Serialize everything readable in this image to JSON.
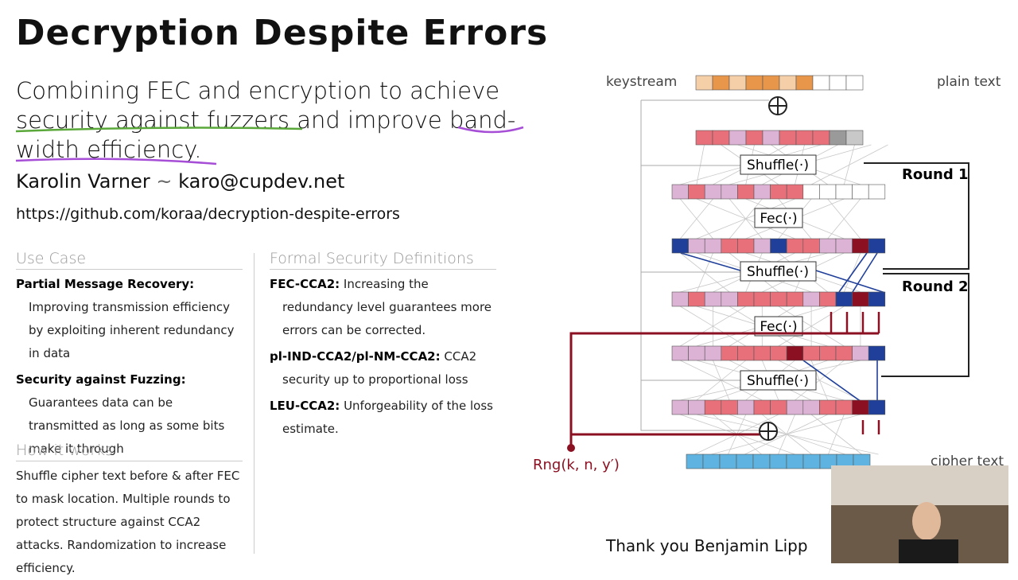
{
  "header": {
    "title": "Decryption Despite Errors",
    "subtitle_lines": [
      "Combining FEC and encryption to achieve",
      "security against fuzzers and improve band-",
      "width efficiency."
    ],
    "author": "Karolin Varner",
    "separator": "~",
    "email": "karo@cupdev.net",
    "url": "https://github.com/koraa/decryption-despite-errors"
  },
  "use_case": {
    "heading": "Use Case",
    "items": [
      {
        "term": "Partial Message Recovery:",
        "text": "Improving transmission efficiency by exploiting inherent redundancy in data"
      },
      {
        "term": "Security against Fuzzing:",
        "text": "Guarantees data can be transmitted as long as some bits make it through"
      }
    ]
  },
  "how_it_works": {
    "heading": "How it works",
    "text": "Shuffle cipher text before & after FEC to mask location. Multiple rounds to protect structure against CCA2 attacks. Randomization to increase efficiency."
  },
  "formal": {
    "heading": "Formal Security Definitions",
    "items": [
      {
        "term": "FEC-CCA2:",
        "text": "Increasing the redundancy level guarantees more errors can be corrected."
      },
      {
        "term": "pl-IND-CCA2/pl-NM-CCA2:",
        "text": "CCA2 security up to proportional loss"
      },
      {
        "term": "LEU-CCA2:",
        "text": "Unforgeability of the loss estimate."
      }
    ]
  },
  "diagram": {
    "keystream": "keystream",
    "plain_text": "plain text",
    "cipher_text": "cipher text",
    "shuffle": [
      "Shuffle(·)",
      "Shuffle(·)",
      "Shuffle(·)"
    ],
    "fec": [
      "Fec(·)",
      "Fec(·)"
    ],
    "rounds": [
      "Round 1",
      "Round 2"
    ],
    "rng": "Rng(k, n, y′)"
  },
  "thanks": "Thank you Benjamin Lipp"
}
